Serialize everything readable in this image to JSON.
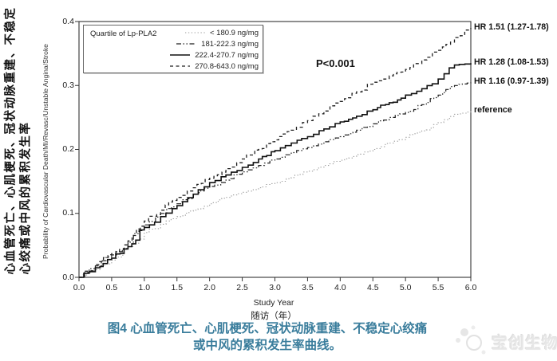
{
  "colors": {
    "caption_teal": "#3a7d9c",
    "curve_dark": "#1f1f1f",
    "reference_gray": "#9b9b9b",
    "frame": "#333333"
  },
  "left_labels": {
    "cn_line1": "心血管死亡、心肌梗死、冠状动脉重建、不稳定",
    "cn_line2": "心绞痛或中风的累积发生率",
    "en_ylabel": "Probability of Cardiovascular Death/MI/Revasc/Unstable Angina/Stroke"
  },
  "legend": {
    "title": "Quartile of Lp-PLA2",
    "items": [
      {
        "label": "< 180.9 ng/mg",
        "style": "dotted"
      },
      {
        "label": "181-222.3 ng/mg",
        "style": "dash-dot-dot"
      },
      {
        "label": "222.4-270.7 ng/mg",
        "style": "solid"
      },
      {
        "label": "270.8-643.0 ng/mg",
        "style": "dashed"
      }
    ]
  },
  "annotations": {
    "p_value": "P<0.001",
    "hr_labels": [
      {
        "text": "HR 1.51 (1.27-1.78)",
        "level": 0.39
      },
      {
        "text": "HR 1.28 (1.08-1.53)",
        "level": 0.335
      },
      {
        "text": "HR 1.16 (0.97-1.39)",
        "level": 0.305
      },
      {
        "text": "reference",
        "level": 0.26
      }
    ]
  },
  "axes": {
    "x_ticks": [
      "0.0",
      "0.5",
      "1.0",
      "1.5",
      "2.0",
      "2.5",
      "3.0",
      "3.5",
      "4.0",
      "4.5",
      "5.0",
      "5.5",
      "6.0"
    ],
    "y_ticks": [
      "0.0",
      "0.1",
      "0.2",
      "0.3",
      "0.4"
    ],
    "xlabel_en": "Study Year",
    "xlabel_cn": "随访（年）"
  },
  "caption": {
    "line1": "图4  心血管死亡、心肌梗死、冠状动脉重建、不稳定心绞痛",
    "line2": "或中风的累积发生率曲线。"
  },
  "watermark": {
    "text": "宝创生物"
  },
  "chart_data": {
    "type": "line",
    "subtype": "kaplan-meier-cumulative-incidence",
    "title": "",
    "xlabel": "Study Year 随访（年）",
    "ylabel": "Probability of Cardiovascular Death/MI/Revasc/Unstable Angina/Stroke",
    "xlim": [
      0,
      6
    ],
    "ylim": [
      0,
      0.4
    ],
    "grid": false,
    "legend_position": "top-left-inside",
    "p_value": "P<0.001",
    "x": [
      0,
      0.25,
      0.5,
      0.75,
      1,
      1.25,
      1.5,
      1.75,
      2,
      2.25,
      2.5,
      2.75,
      3,
      3.25,
      3.5,
      3.75,
      4,
      4.25,
      4.5,
      4.75,
      5,
      5.25,
      5.5,
      5.75,
      6
    ],
    "series": [
      {
        "name": "< 180.9 ng/mg (reference)",
        "style": "dotted",
        "hr": "reference",
        "values": [
          0,
          0.012,
          0.027,
          0.048,
          0.07,
          0.083,
          0.095,
          0.105,
          0.115,
          0.125,
          0.133,
          0.14,
          0.148,
          0.156,
          0.166,
          0.175,
          0.183,
          0.192,
          0.2,
          0.21,
          0.219,
          0.229,
          0.242,
          0.255,
          0.26
        ]
      },
      {
        "name": "181-222.3 ng/mg",
        "style": "dash-dot-dot",
        "hr": "HR 1.16 (0.97-1.39)",
        "values": [
          0,
          0.018,
          0.035,
          0.055,
          0.082,
          0.1,
          0.115,
          0.13,
          0.142,
          0.152,
          0.165,
          0.175,
          0.185,
          0.195,
          0.203,
          0.212,
          0.22,
          0.23,
          0.24,
          0.25,
          0.258,
          0.27,
          0.285,
          0.3,
          0.305
        ]
      },
      {
        "name": "222.4-270.7 ng/mg",
        "style": "solid",
        "hr": "HR 1.28 (1.08-1.53)",
        "values": [
          0,
          0.015,
          0.03,
          0.048,
          0.078,
          0.095,
          0.112,
          0.13,
          0.148,
          0.16,
          0.172,
          0.185,
          0.198,
          0.21,
          0.22,
          0.232,
          0.243,
          0.252,
          0.262,
          0.273,
          0.285,
          0.295,
          0.31,
          0.332,
          0.335
        ]
      },
      {
        "name": "270.8-643.0 ng/mg",
        "style": "dashed",
        "hr": "HR 1.51 (1.27-1.78)",
        "values": [
          0,
          0.02,
          0.037,
          0.057,
          0.088,
          0.105,
          0.125,
          0.14,
          0.155,
          0.17,
          0.185,
          0.2,
          0.215,
          0.23,
          0.245,
          0.26,
          0.275,
          0.29,
          0.305,
          0.315,
          0.325,
          0.34,
          0.355,
          0.375,
          0.39
        ]
      }
    ]
  }
}
